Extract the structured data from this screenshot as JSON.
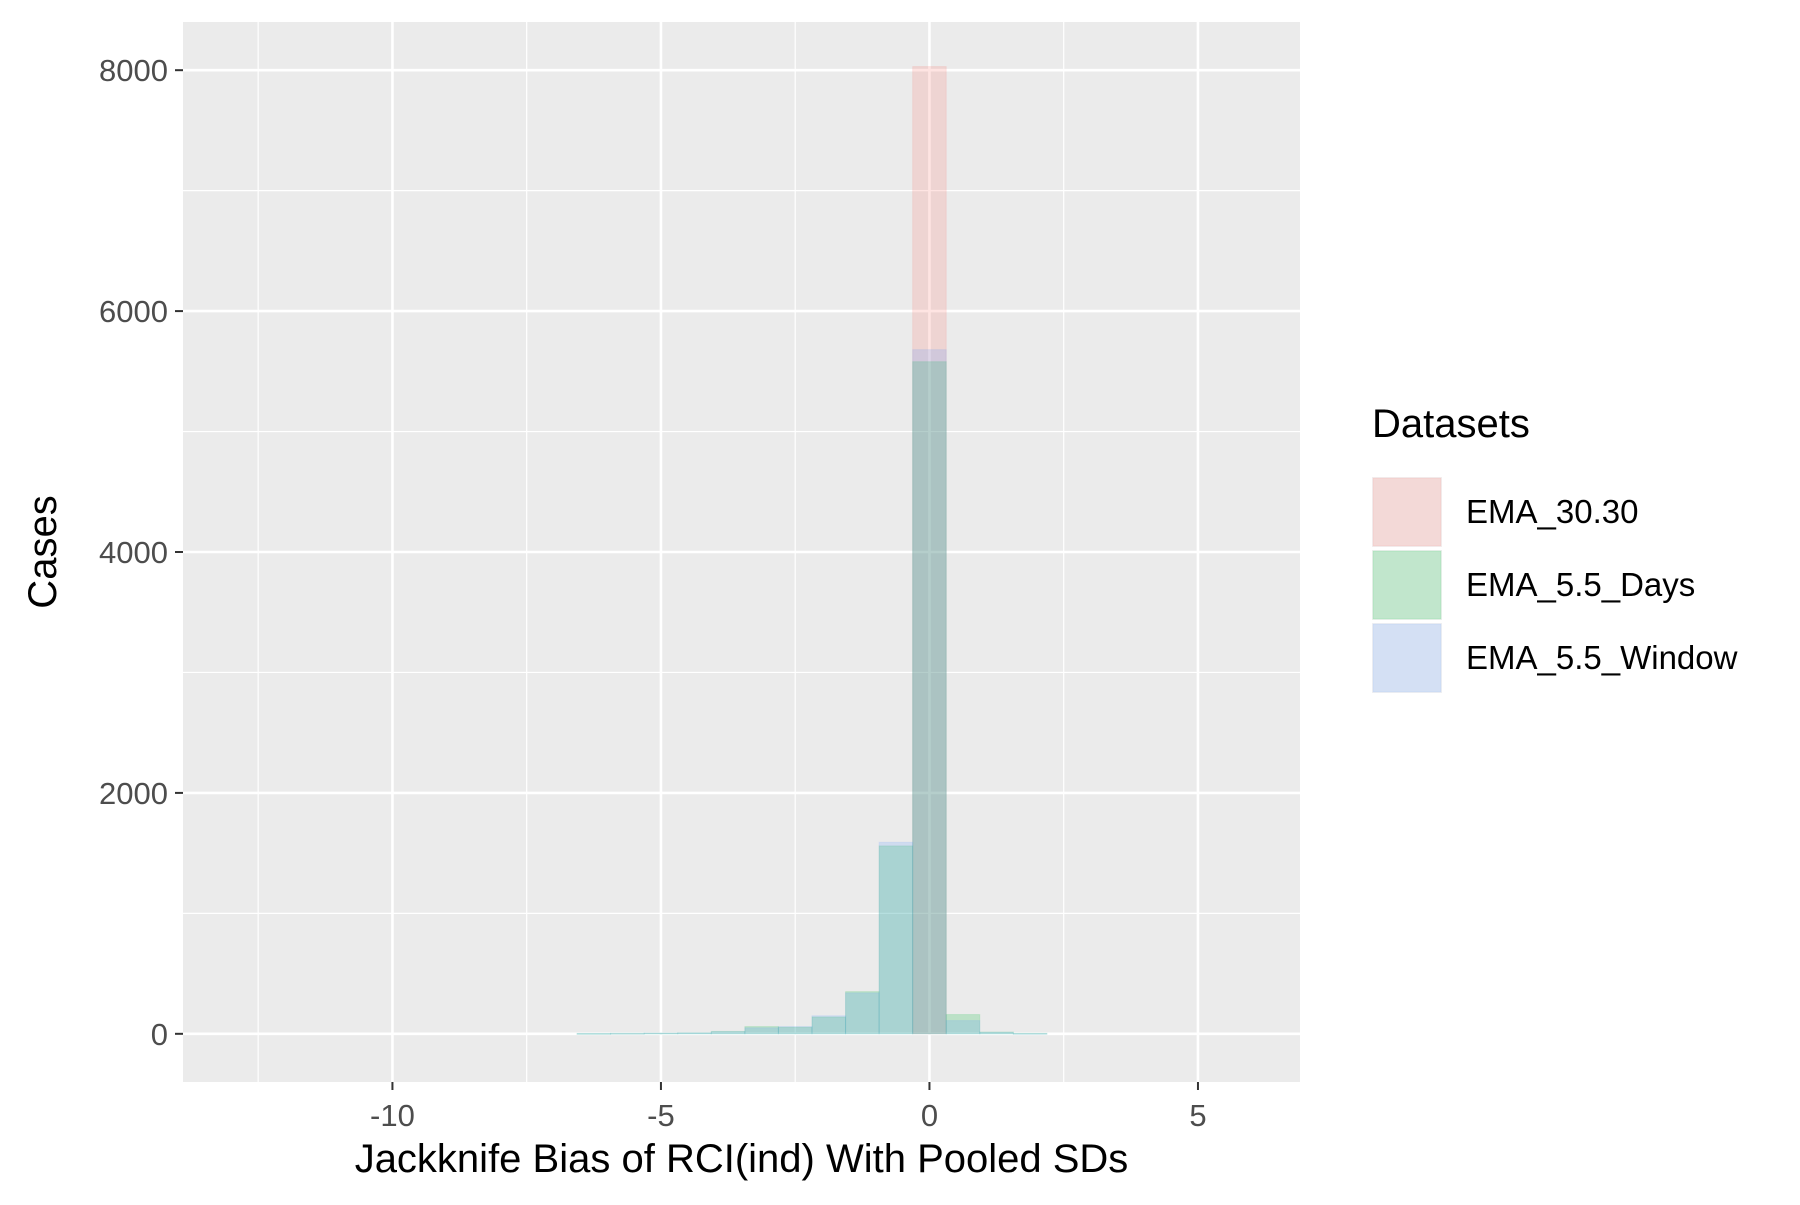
{
  "chart_data": {
    "type": "histogram",
    "title": "",
    "xlabel": "Jackknife Bias of RCI(ind) With Pooled SDs",
    "ylabel": "Cases",
    "xlim": [
      -13.9,
      6.9
    ],
    "ylim": [
      -400,
      8400
    ],
    "bin_width": 0.625,
    "x_ticks": [
      -10,
      -5,
      0,
      5
    ],
    "x_tick_labels": [
      "-10",
      "-5",
      "0",
      "5"
    ],
    "y_ticks": [
      0,
      2000,
      4000,
      6000,
      8000
    ],
    "y_tick_labels": [
      "0",
      "2000",
      "4000",
      "6000",
      "8000"
    ],
    "grid": true,
    "panel_background": "#EBEBEB",
    "legend": {
      "title": "Datasets",
      "position": "right",
      "entries": [
        "EMA_30.30",
        "EMA_5.5_Days",
        "EMA_5.5_Window"
      ]
    },
    "series": [
      {
        "name": "EMA_30.30",
        "color": "#F8766D",
        "bins": [
          {
            "x0": -0.3125,
            "x1": 0.3125,
            "count": 8030
          }
        ]
      },
      {
        "name": "EMA_5.5_Days",
        "color": "#00BA38",
        "bins": [
          {
            "x0": -6.5625,
            "x1": -5.9375,
            "count": 3
          },
          {
            "x0": -5.9375,
            "x1": -5.3125,
            "count": 4
          },
          {
            "x0": -5.3125,
            "x1": -4.6875,
            "count": 6
          },
          {
            "x0": -4.6875,
            "x1": -4.0625,
            "count": 8
          },
          {
            "x0": -4.0625,
            "x1": -3.4375,
            "count": 20
          },
          {
            "x0": -3.4375,
            "x1": -2.8125,
            "count": 60
          },
          {
            "x0": -2.8125,
            "x1": -2.1875,
            "count": 55
          },
          {
            "x0": -2.1875,
            "x1": -1.5625,
            "count": 140
          },
          {
            "x0": -1.5625,
            "x1": -0.9375,
            "count": 350
          },
          {
            "x0": -0.9375,
            "x1": -0.3125,
            "count": 1560
          },
          {
            "x0": -0.3125,
            "x1": 0.3125,
            "count": 5580
          },
          {
            "x0": 0.3125,
            "x1": 0.9375,
            "count": 160
          },
          {
            "x0": 0.9375,
            "x1": 1.5625,
            "count": 15
          },
          {
            "x0": 1.5625,
            "x1": 2.1875,
            "count": 4
          }
        ]
      },
      {
        "name": "EMA_5.5_Window",
        "color": "#619CFF",
        "bins": [
          {
            "x0": -6.5625,
            "x1": -5.9375,
            "count": 3
          },
          {
            "x0": -5.9375,
            "x1": -5.3125,
            "count": 4
          },
          {
            "x0": -5.3125,
            "x1": -4.6875,
            "count": 6
          },
          {
            "x0": -4.6875,
            "x1": -4.0625,
            "count": 8
          },
          {
            "x0": -4.0625,
            "x1": -3.4375,
            "count": 18
          },
          {
            "x0": -3.4375,
            "x1": -2.8125,
            "count": 50
          },
          {
            "x0": -2.8125,
            "x1": -2.1875,
            "count": 60
          },
          {
            "x0": -2.1875,
            "x1": -1.5625,
            "count": 150
          },
          {
            "x0": -1.5625,
            "x1": -0.9375,
            "count": 340
          },
          {
            "x0": -0.9375,
            "x1": -0.3125,
            "count": 1590
          },
          {
            "x0": -0.3125,
            "x1": 0.3125,
            "count": 5680
          },
          {
            "x0": 0.3125,
            "x1": 0.9375,
            "count": 110
          },
          {
            "x0": 0.9375,
            "x1": 1.5625,
            "count": 12
          },
          {
            "x0": 1.5625,
            "x1": 2.1875,
            "count": 3
          }
        ]
      }
    ]
  }
}
